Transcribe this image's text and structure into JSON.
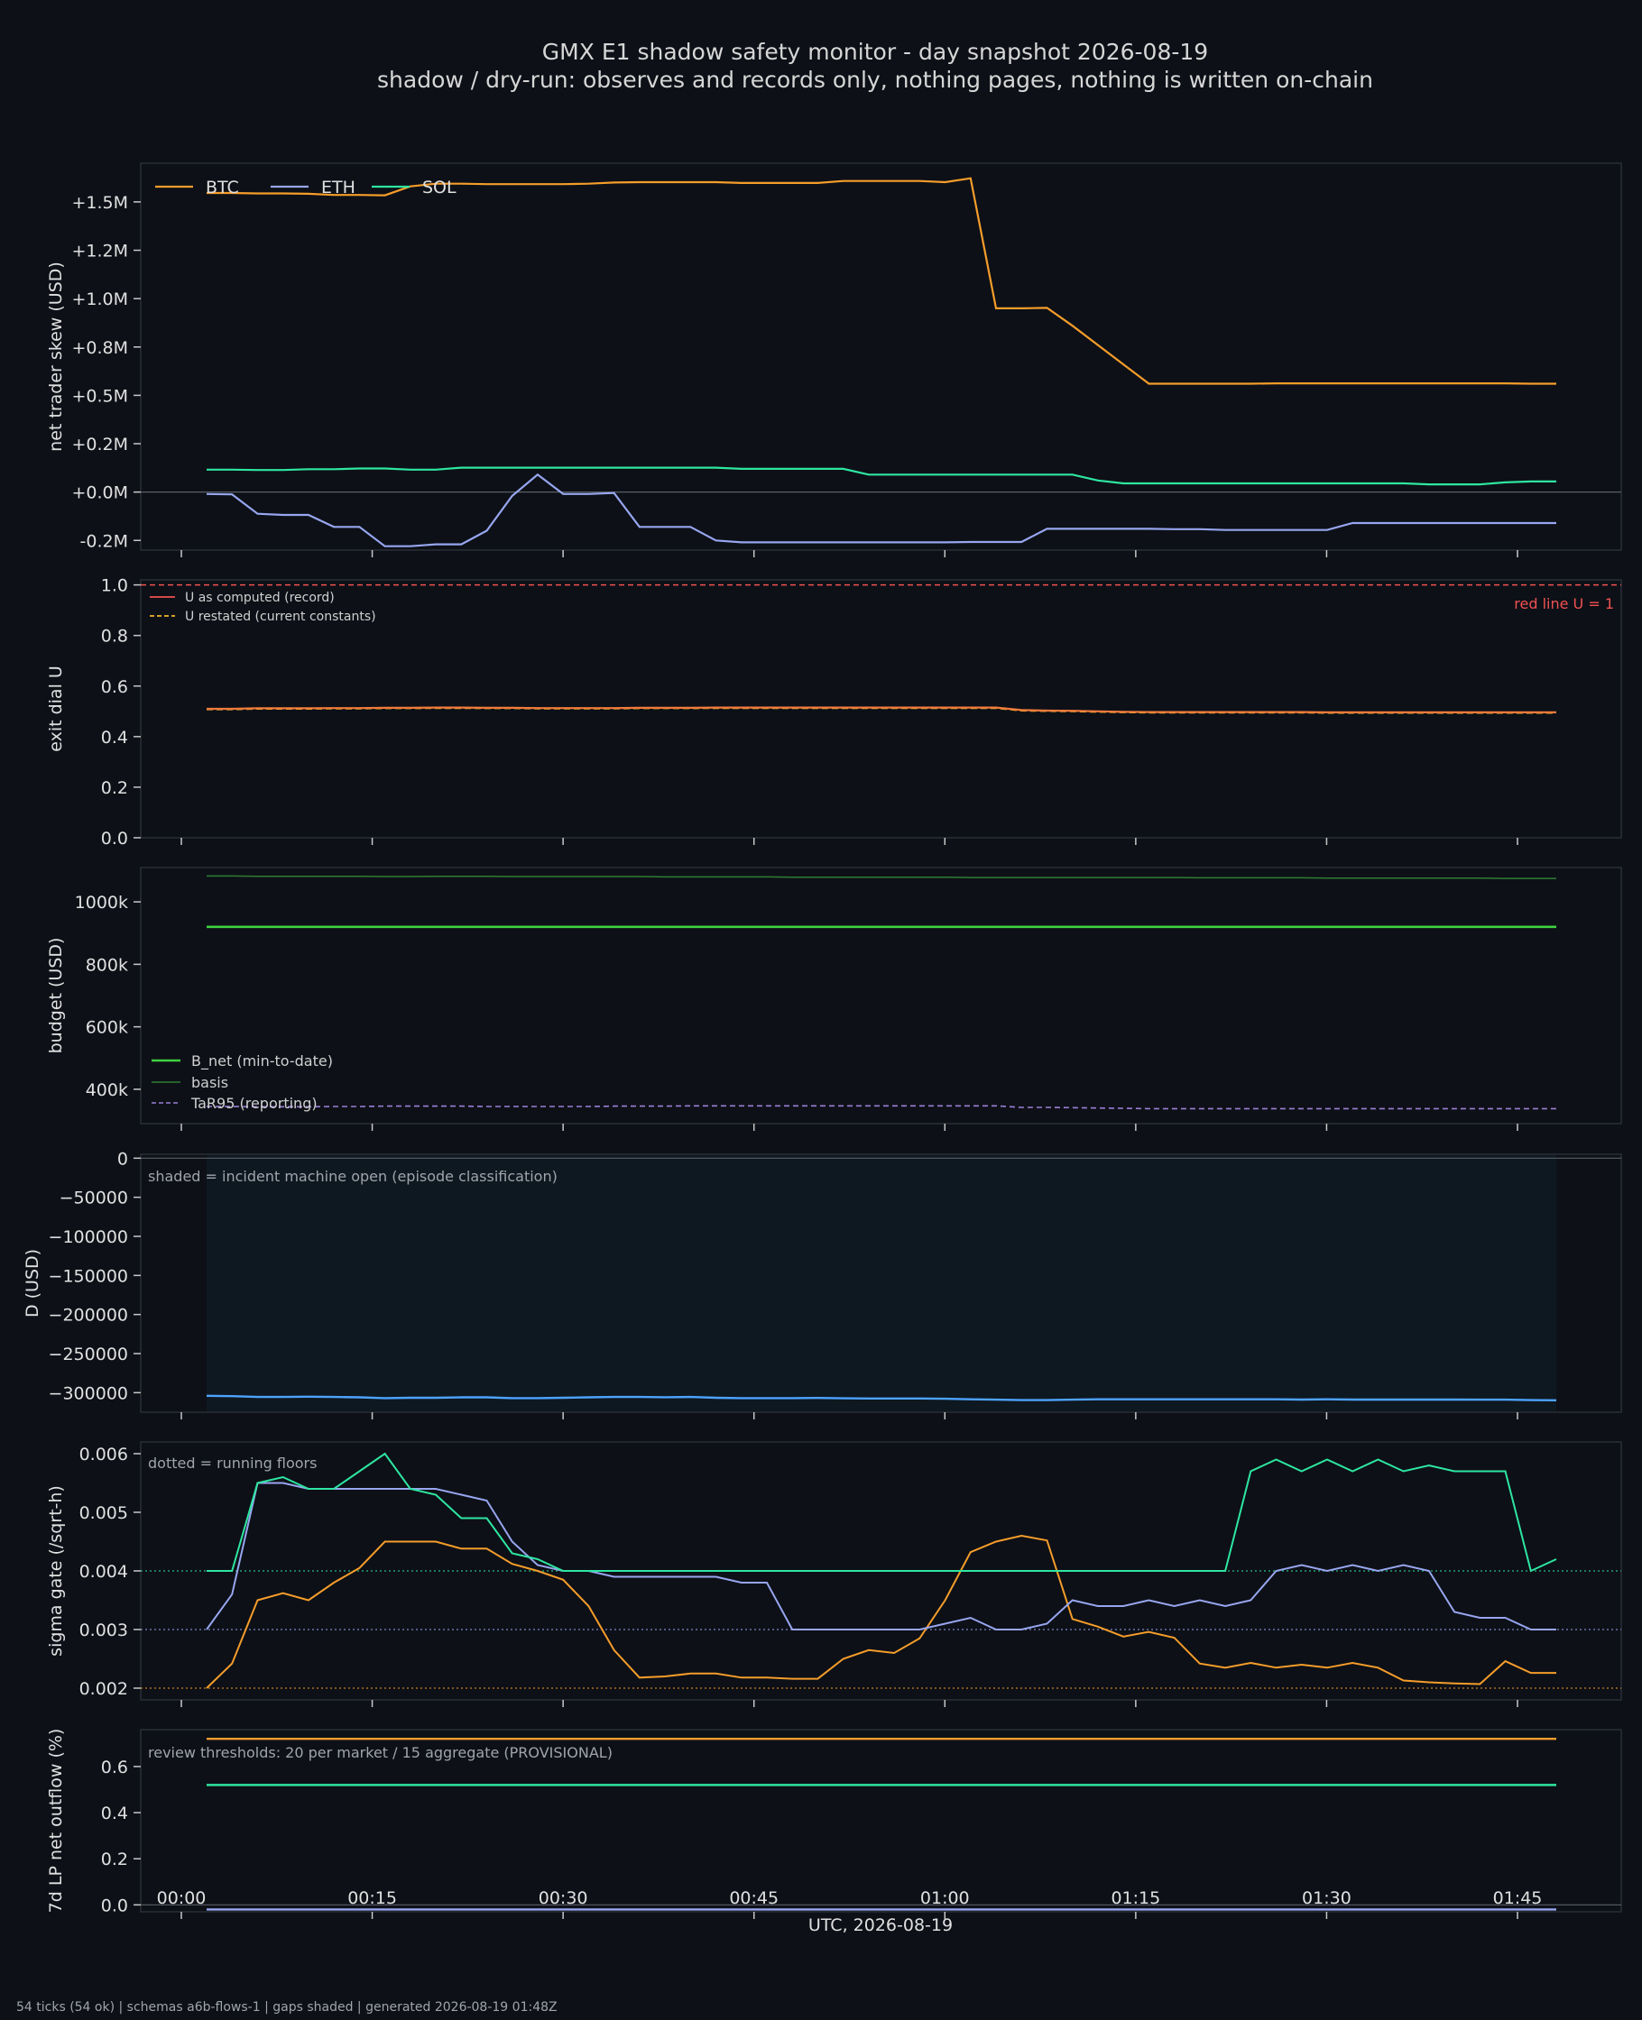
{
  "page": {
    "title": "GMX E1 shadow safety monitor - day snapshot 2026-08-19",
    "subtitle": "shadow / dry-run: observes and records only, nothing pages, nothing is written on-chain",
    "xlabel": "UTC, 2026-08-19",
    "footer": "54 ticks (54 ok) | schemas a6b-flows-1 | gaps shaded | generated 2026-08-19 01:48Z"
  },
  "colors": {
    "background": "#0d1017",
    "panel": "#0d1017",
    "btc": "#f59d2a",
    "eth": "#97a6ef",
    "sol": "#2ee6a1",
    "u_record": "#f05252",
    "u_restated": "#f0b429",
    "b_net": "#3fd13f",
    "basis": "#2e7d32",
    "tar95": "#9a7fd6",
    "d_line": "#4da3ff",
    "incident_shade": "#0e1820"
  },
  "x_ticks": [
    "00:00",
    "00:15",
    "00:30",
    "00:45",
    "01:00",
    "01:15",
    "01:30",
    "01:45"
  ],
  "chart_data": [
    {
      "type": "line",
      "ylabel": "net trader skew (USD)",
      "ylim": [
        -0.3,
        1.7
      ],
      "y_ticks": [
        "+1.5M",
        "+1.2M",
        "+1.0M",
        "+0.8M",
        "+0.5M",
        "+0.2M",
        "+0.0M",
        "-0.2M"
      ],
      "y_tick_values": [
        1.5,
        1.25,
        1.0,
        0.75,
        0.5,
        0.25,
        0.0,
        -0.25
      ],
      "legend": [
        "BTC",
        "ETH",
        "SOL"
      ],
      "series": [
        {
          "name": "BTC",
          "values": [
            1.546,
            1.546,
            1.544,
            1.544,
            1.542,
            1.536,
            1.536,
            1.534,
            1.58,
            1.594,
            1.594,
            1.592,
            1.592,
            1.592,
            1.592,
            1.594,
            1.6,
            1.602,
            1.602,
            1.602,
            1.602,
            1.598,
            1.598,
            1.598,
            1.598,
            1.608,
            1.608,
            1.608,
            1.608,
            1.602,
            1.622,
            0.95,
            0.95,
            0.952,
            0.86,
            0.76,
            0.66,
            0.56,
            0.56,
            0.56,
            0.56,
            0.56,
            0.562,
            0.562,
            0.562,
            0.562,
            0.562,
            0.562,
            0.562,
            0.562,
            0.562,
            0.562,
            0.56,
            0.56
          ]
        },
        {
          "name": "ETH",
          "values": [
            -0.01,
            -0.012,
            -0.112,
            -0.118,
            -0.118,
            -0.18,
            -0.18,
            -0.28,
            -0.28,
            -0.27,
            -0.27,
            -0.2,
            -0.02,
            0.09,
            -0.01,
            -0.01,
            -0.005,
            -0.18,
            -0.18,
            -0.18,
            -0.25,
            -0.26,
            -0.26,
            -0.26,
            -0.26,
            -0.26,
            -0.26,
            -0.26,
            -0.26,
            -0.26,
            -0.258,
            -0.258,
            -0.258,
            -0.19,
            -0.19,
            -0.19,
            -0.19,
            -0.19,
            -0.192,
            -0.192,
            -0.196,
            -0.196,
            -0.196,
            -0.196,
            -0.196,
            -0.16,
            -0.16,
            -0.16,
            -0.16,
            -0.16,
            -0.16,
            -0.16,
            -0.16,
            -0.16
          ]
        },
        {
          "name": "SOL",
          "values": [
            0.116,
            0.116,
            0.114,
            0.114,
            0.118,
            0.118,
            0.122,
            0.122,
            0.116,
            0.116,
            0.126,
            0.126,
            0.126,
            0.126,
            0.126,
            0.126,
            0.126,
            0.126,
            0.126,
            0.126,
            0.126,
            0.12,
            0.12,
            0.12,
            0.12,
            0.12,
            0.09,
            0.09,
            0.09,
            0.09,
            0.09,
            0.09,
            0.09,
            0.09,
            0.09,
            0.06,
            0.045,
            0.045,
            0.045,
            0.045,
            0.045,
            0.045,
            0.045,
            0.045,
            0.045,
            0.045,
            0.045,
            0.045,
            0.04,
            0.04,
            0.04,
            0.05,
            0.055,
            0.055
          ]
        }
      ]
    },
    {
      "type": "line",
      "ylabel": "exit dial U",
      "ylim": [
        0.0,
        1.02
      ],
      "y_ticks": [
        "1.0",
        "0.8",
        "0.6",
        "0.4",
        "0.2",
        "0.0"
      ],
      "y_tick_values": [
        1.0,
        0.8,
        0.6,
        0.4,
        0.2,
        0.0
      ],
      "legend": [
        "U as computed (record)",
        "U restated (current constants)"
      ],
      "annotation": "red line U = 1",
      "red_line": 1.0,
      "series": [
        {
          "name": "U as computed (record)",
          "values": [
            0.51,
            0.51,
            0.512,
            0.512,
            0.512,
            0.513,
            0.513,
            0.514,
            0.514,
            0.515,
            0.515,
            0.514,
            0.514,
            0.513,
            0.513,
            0.513,
            0.513,
            0.514,
            0.514,
            0.514,
            0.515,
            0.515,
            0.515,
            0.515,
            0.515,
            0.515,
            0.515,
            0.515,
            0.515,
            0.515,
            0.515,
            0.515,
            0.505,
            0.503,
            0.502,
            0.5,
            0.498,
            0.497,
            0.497,
            0.497,
            0.497,
            0.497,
            0.497,
            0.497,
            0.496,
            0.496,
            0.496,
            0.496,
            0.496,
            0.496,
            0.496,
            0.496,
            0.496,
            0.496
          ]
        },
        {
          "name": "U restated (current constants)",
          "values": [
            0.508,
            0.508,
            0.51,
            0.51,
            0.51,
            0.511,
            0.511,
            0.512,
            0.512,
            0.513,
            0.513,
            0.512,
            0.512,
            0.511,
            0.511,
            0.511,
            0.511,
            0.512,
            0.512,
            0.512,
            0.513,
            0.513,
            0.513,
            0.513,
            0.513,
            0.513,
            0.513,
            0.513,
            0.513,
            0.513,
            0.513,
            0.513,
            0.503,
            0.501,
            0.5,
            0.498,
            0.496,
            0.495,
            0.495,
            0.495,
            0.495,
            0.495,
            0.495,
            0.495,
            0.494,
            0.494,
            0.494,
            0.494,
            0.494,
            0.494,
            0.494,
            0.494,
            0.494,
            0.494
          ]
        }
      ]
    },
    {
      "type": "line",
      "ylabel": "budget (USD)",
      "ylim": [
        290,
        1110
      ],
      "y_ticks": [
        "1000k",
        "800k",
        "600k",
        "400k"
      ],
      "y_tick_values": [
        1000,
        800,
        600,
        400
      ],
      "legend": [
        "B_net (min-to-date)",
        "basis",
        "TaR95 (reporting)"
      ],
      "series": [
        {
          "name": "B_net (min-to-date)",
          "values": [
            920,
            920,
            920,
            920,
            920,
            920,
            920,
            920,
            920,
            920,
            920,
            920,
            920,
            920,
            920,
            920,
            920,
            920,
            920,
            920,
            920,
            920,
            920,
            920,
            920,
            920,
            920,
            920,
            920,
            920,
            920,
            920,
            920,
            920,
            920,
            920,
            920,
            920,
            920,
            920,
            920,
            920,
            920,
            920,
            920,
            920,
            920,
            920,
            920,
            920,
            920,
            920,
            920,
            920
          ]
        },
        {
          "name": "basis",
          "values": [
            1083,
            1083,
            1082,
            1082,
            1082,
            1082,
            1082,
            1081,
            1081,
            1082,
            1082,
            1082,
            1081,
            1081,
            1081,
            1081,
            1081,
            1081,
            1080,
            1080,
            1080,
            1080,
            1080,
            1079,
            1079,
            1079,
            1079,
            1079,
            1079,
            1079,
            1078,
            1078,
            1078,
            1078,
            1078,
            1078,
            1078,
            1078,
            1078,
            1077,
            1077,
            1077,
            1077,
            1077,
            1076,
            1076,
            1076,
            1076,
            1076,
            1076,
            1076,
            1075,
            1075,
            1075
          ]
        },
        {
          "name": "TaR95 (reporting)",
          "values": [
            345,
            345,
            344,
            344,
            344,
            345,
            345,
            346,
            346,
            346,
            346,
            345,
            345,
            345,
            345,
            345,
            346,
            346,
            346,
            347,
            347,
            347,
            347,
            347,
            347,
            347,
            347,
            347,
            347,
            347,
            347,
            347,
            342,
            342,
            341,
            340,
            339,
            338,
            338,
            338,
            338,
            338,
            338,
            338,
            338,
            338,
            338,
            338,
            338,
            338,
            338,
            338,
            338,
            338
          ]
        }
      ]
    },
    {
      "type": "line",
      "ylabel": "D (USD)",
      "ylim": [
        -325000,
        5000
      ],
      "y_ticks": [
        "0",
        "−50000",
        "−100000",
        "−150000",
        "−200000",
        "−250000",
        "−300000"
      ],
      "y_tick_values": [
        0,
        -50000,
        -100000,
        -150000,
        -200000,
        -250000,
        -300000
      ],
      "annotation": "shaded = incident machine open (episode classification)",
      "shaded_range_tick_index": [
        0,
        53
      ],
      "series": [
        {
          "name": "D",
          "values": [
            -304000,
            -304500,
            -305500,
            -305500,
            -305200,
            -305500,
            -306000,
            -307000,
            -306500,
            -306500,
            -306000,
            -306000,
            -307000,
            -307000,
            -306500,
            -306000,
            -305500,
            -305500,
            -305800,
            -305500,
            -306500,
            -307000,
            -307000,
            -307000,
            -306800,
            -307200,
            -307500,
            -307500,
            -307500,
            -307800,
            -308500,
            -309000,
            -309500,
            -309500,
            -309000,
            -308500,
            -308500,
            -308500,
            -308500,
            -308500,
            -308500,
            -308500,
            -308500,
            -308800,
            -308500,
            -308800,
            -308800,
            -308800,
            -308800,
            -308800,
            -309000,
            -309000,
            -309500,
            -309800
          ]
        }
      ]
    },
    {
      "type": "line",
      "ylabel": "sigma gate (/sqrt-h)",
      "ylim": [
        0.0018,
        0.0062
      ],
      "y_ticks": [
        "0.006",
        "0.005",
        "0.004",
        "0.003",
        "0.002"
      ],
      "y_tick_values": [
        0.006,
        0.005,
        0.004,
        0.003,
        0.002
      ],
      "annotation": "dotted = running floors",
      "floors": [
        0.004,
        0.003,
        0.002
      ],
      "series": [
        {
          "name": "BTC",
          "values": [
            0.002,
            0.00242,
            0.0035,
            0.00362,
            0.0035,
            0.0038,
            0.00405,
            0.0045,
            0.0045,
            0.0045,
            0.00438,
            0.00438,
            0.00412,
            0.004,
            0.00385,
            0.0034,
            0.00265,
            0.00218,
            0.0022,
            0.00225,
            0.00225,
            0.00218,
            0.00218,
            0.00216,
            0.00216,
            0.0025,
            0.00265,
            0.0026,
            0.00285,
            0.0035,
            0.00432,
            0.0045,
            0.0046,
            0.00452,
            0.00318,
            0.00305,
            0.00288,
            0.00296,
            0.00286,
            0.00242,
            0.00235,
            0.00243,
            0.00235,
            0.0024,
            0.00235,
            0.00243,
            0.00235,
            0.00213,
            0.0021,
            0.00208,
            0.00207,
            0.00246,
            0.00226,
            0.00226
          ]
        },
        {
          "name": "ETH",
          "values": [
            0.003,
            0.0036,
            0.0055,
            0.0055,
            0.0054,
            0.0054,
            0.0054,
            0.0054,
            0.0054,
            0.0054,
            0.0053,
            0.0052,
            0.0045,
            0.0041,
            0.004,
            0.004,
            0.0039,
            0.0039,
            0.0039,
            0.0039,
            0.0039,
            0.0038,
            0.0038,
            0.003,
            0.003,
            0.003,
            0.003,
            0.003,
            0.003,
            0.0031,
            0.0032,
            0.003,
            0.003,
            0.0031,
            0.0035,
            0.0034,
            0.0034,
            0.0035,
            0.0034,
            0.0035,
            0.0034,
            0.0035,
            0.004,
            0.0041,
            0.004,
            0.0041,
            0.004,
            0.0041,
            0.004,
            0.0033,
            0.0032,
            0.0032,
            0.003,
            0.003
          ]
        },
        {
          "name": "SOL",
          "values": [
            0.004,
            0.004,
            0.0055,
            0.0056,
            0.0054,
            0.0054,
            0.0057,
            0.006,
            0.0054,
            0.0053,
            0.0049,
            0.0049,
            0.0043,
            0.0042,
            0.004,
            0.004,
            0.004,
            0.004,
            0.004,
            0.004,
            0.004,
            0.004,
            0.004,
            0.004,
            0.004,
            0.004,
            0.004,
            0.004,
            0.004,
            0.004,
            0.004,
            0.004,
            0.004,
            0.004,
            0.004,
            0.004,
            0.004,
            0.004,
            0.004,
            0.004,
            0.004,
            0.0057,
            0.0059,
            0.0057,
            0.0059,
            0.0057,
            0.0059,
            0.0057,
            0.0058,
            0.0057,
            0.0057,
            0.0057,
            0.004,
            0.0042
          ]
        }
      ]
    },
    {
      "type": "line",
      "ylabel": "7d LP net outflow (%)",
      "ylim": [
        -0.03,
        0.76
      ],
      "y_ticks": [
        "0.6",
        "0.4",
        "0.2",
        "0.0"
      ],
      "y_tick_values": [
        0.6,
        0.4,
        0.2,
        0.0
      ],
      "annotation": "review thresholds: 20 per market / 15 aggregate (PROVISIONAL)",
      "series": [
        {
          "name": "BTC",
          "values": [
            0.72,
            0.72
          ]
        },
        {
          "name": "SOL",
          "values": [
            0.52,
            0.52
          ]
        },
        {
          "name": "ETH",
          "values": [
            -0.02,
            -0.02
          ]
        }
      ]
    }
  ]
}
